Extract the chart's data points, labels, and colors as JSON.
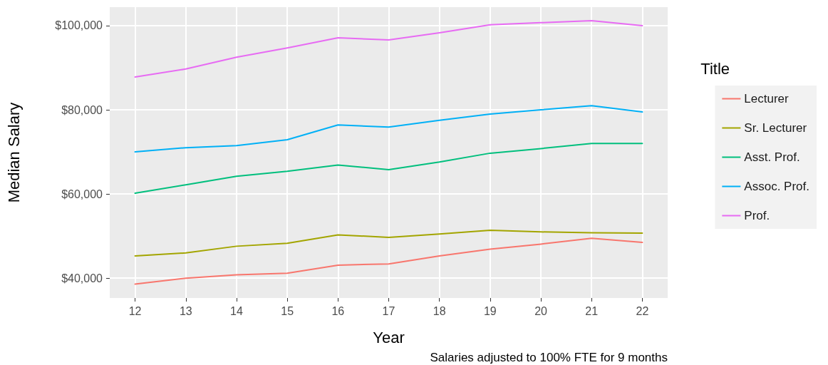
{
  "chart_data": {
    "type": "line",
    "xlabel": "Year",
    "ylabel": "Median Salary",
    "legend_title": "Title",
    "annotations": [
      "Salaries adjusted to 100% FTE for 9 months"
    ],
    "x": [
      12,
      13,
      14,
      15,
      16,
      17,
      18,
      19,
      20,
      21,
      22
    ],
    "xlim": [
      11.5,
      22.5
    ],
    "xticks": [
      12,
      13,
      14,
      15,
      16,
      17,
      18,
      19,
      20,
      21,
      22
    ],
    "ylim": [
      35300,
      104400
    ],
    "yticks": [
      {
        "value": 40000,
        "label": "$40,000"
      },
      {
        "value": 60000,
        "label": "$60,000"
      },
      {
        "value": 80000,
        "label": "$80,000"
      },
      {
        "value": 100000,
        "label": "$100,000"
      }
    ],
    "grid": true,
    "legend": "right",
    "marker": "none",
    "line_style": "solid",
    "series": [
      {
        "name": "Lecturer",
        "color": "#f8766d",
        "values": [
          38600,
          40000,
          40800,
          41200,
          43100,
          43400,
          45300,
          46900,
          48100,
          49500,
          48500
        ]
      },
      {
        "name": "Sr. Lecturer",
        "color": "#a3a500",
        "values": [
          45300,
          46000,
          47600,
          48300,
          50300,
          49700,
          50500,
          51400,
          51000,
          50800,
          50700
        ]
      },
      {
        "name": "Asst. Prof.",
        "color": "#00bf7d",
        "values": [
          60200,
          62200,
          64200,
          65400,
          66900,
          65800,
          67600,
          69700,
          70800,
          72000,
          72000
        ]
      },
      {
        "name": "Assoc. Prof.",
        "color": "#00b0f6",
        "values": [
          70000,
          71000,
          71500,
          72900,
          76400,
          75900,
          77500,
          79000,
          80000,
          81000,
          79500
        ]
      },
      {
        "name": "Prof.",
        "color": "#e76bf3",
        "values": [
          87800,
          89700,
          92500,
          94700,
          97100,
          96600,
          98300,
          100200,
          100700,
          101200,
          100000
        ]
      }
    ]
  }
}
